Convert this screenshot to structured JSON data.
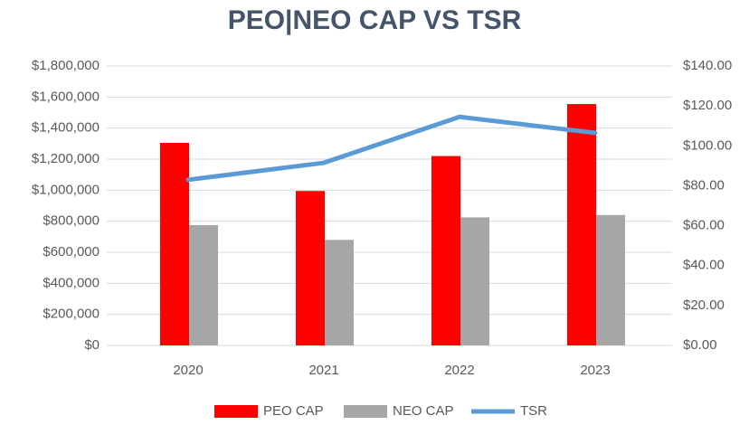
{
  "chart_data": {
    "type": "bar_line",
    "title": "PEO|NEO CAP VS TSR",
    "categories": [
      "2020",
      "2021",
      "2022",
      "2023"
    ],
    "series": [
      {
        "name": "PEO CAP",
        "color": "#ff0000",
        "type": "bar",
        "values": [
          1305000,
          995000,
          1220000,
          1555000
        ]
      },
      {
        "name": "NEO CAP",
        "color": "#a6a6a6",
        "type": "bar",
        "values": [
          775000,
          680000,
          825000,
          840000
        ]
      },
      {
        "name": "TSR",
        "color": "#5b9bd5",
        "type": "line",
        "axis": "y2",
        "values": [
          83,
          91.5,
          114.5,
          106.5
        ]
      }
    ],
    "ylim": [
      0,
      1800000
    ],
    "yticks": [
      {
        "value": 0,
        "label": "$0"
      },
      {
        "value": 200000,
        "label": "$200,000"
      },
      {
        "value": 400000,
        "label": "$400,000"
      },
      {
        "value": 600000,
        "label": "$600,000"
      },
      {
        "value": 800000,
        "label": "$800,000"
      },
      {
        "value": 1000000,
        "label": "$1,000,000"
      },
      {
        "value": 1200000,
        "label": "$1,200,000"
      },
      {
        "value": 1400000,
        "label": "$1,400,000"
      },
      {
        "value": 1600000,
        "label": "$1,600,000"
      },
      {
        "value": 1800000,
        "label": "$1,800,000"
      }
    ],
    "y2lim": [
      0,
      140
    ],
    "y2ticks": [
      {
        "value": 0,
        "label": "$0.00"
      },
      {
        "value": 20,
        "label": "$20.00"
      },
      {
        "value": 40,
        "label": "$40.00"
      },
      {
        "value": 60,
        "label": "$60.00"
      },
      {
        "value": 80,
        "label": "$80.00"
      },
      {
        "value": 100,
        "label": "$100.00"
      },
      {
        "value": 120,
        "label": "$120.00"
      },
      {
        "value": 140,
        "label": "$140.00"
      }
    ],
    "grid": true,
    "legend": "bottom"
  }
}
